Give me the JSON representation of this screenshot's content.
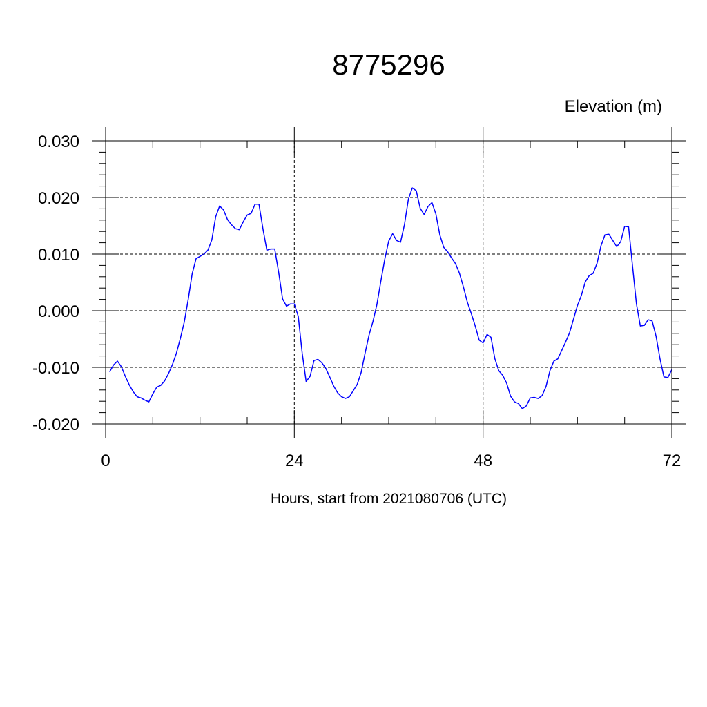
{
  "chart_data": {
    "type": "line",
    "title": "8775296",
    "ylabel": "Elevation (m)",
    "xlabel": "Hours, start from 2021080706 (UTC)",
    "xlim": [
      0,
      72
    ],
    "ylim": [
      -0.02,
      0.03
    ],
    "x_ticks": [
      0,
      24,
      48,
      72
    ],
    "x_tick_labels": [
      "0",
      "24",
      "48",
      "72"
    ],
    "y_ticks": [
      -0.02,
      -0.01,
      0.0,
      0.01,
      0.02,
      0.03
    ],
    "y_tick_labels": [
      "-0.020",
      "-0.010",
      "0.000",
      "0.010",
      "0.020",
      "0.030"
    ],
    "grid": true,
    "series": [
      {
        "name": "",
        "color": "#0000ff",
        "x": [
          0.5,
          1.0,
          1.5,
          2.0,
          2.5,
          3.0,
          3.5,
          4.0,
          4.5,
          5.0,
          5.5,
          6.0,
          6.5,
          7.0,
          7.5,
          8.0,
          8.5,
          9.0,
          9.5,
          10.0,
          10.5,
          11.0,
          11.5,
          12.0,
          12.5,
          13.0,
          13.5,
          14.0,
          14.5,
          15.0,
          15.5,
          16.0,
          16.5,
          17.0,
          17.5,
          18.0,
          18.5,
          19.0,
          19.5,
          20.0,
          20.5,
          21.0,
          21.5,
          22.0,
          22.5,
          23.0,
          23.5,
          24.0,
          24.5,
          25.0,
          25.5,
          26.0,
          26.5,
          27.0,
          27.5,
          28.0,
          28.5,
          29.0,
          29.5,
          30.0,
          30.5,
          31.0,
          31.5,
          32.0,
          32.5,
          33.0,
          33.5,
          34.0,
          34.5,
          35.0,
          35.5,
          36.0,
          36.5,
          37.0,
          37.5,
          38.0,
          38.5,
          39.0,
          39.5,
          40.0,
          40.5,
          41.0,
          41.5,
          42.0,
          42.5,
          43.0,
          43.5,
          44.0,
          44.5,
          45.0,
          45.5,
          46.0,
          46.5,
          47.0,
          47.5,
          48.0,
          48.5,
          49.0,
          49.5,
          50.0,
          50.5,
          51.0,
          51.5,
          52.0,
          52.5,
          53.0,
          53.5,
          54.0,
          54.5,
          55.0,
          55.5,
          56.0,
          56.5,
          57.0,
          57.5,
          58.0,
          58.5,
          59.0,
          59.5,
          60.0,
          60.5,
          61.0,
          61.5,
          62.0,
          62.5,
          63.0,
          63.5,
          64.0,
          64.5,
          65.0,
          65.5,
          66.0,
          66.5,
          67.0,
          67.5,
          68.0,
          68.5,
          69.0,
          69.5,
          70.0,
          70.5,
          71.0,
          71.5,
          72.0
        ],
        "y": [
          -0.0108,
          -0.0096,
          -0.0089,
          -0.0099,
          -0.0116,
          -0.0131,
          -0.0143,
          -0.0152,
          -0.0154,
          -0.0158,
          -0.0161,
          -0.0147,
          -0.0135,
          -0.0132,
          -0.0124,
          -0.0111,
          -0.0095,
          -0.0075,
          -0.0049,
          -0.002,
          0.002,
          0.0065,
          0.0092,
          0.0096,
          0.01,
          0.0107,
          0.0125,
          0.0166,
          0.0185,
          0.0178,
          0.0161,
          0.0152,
          0.0145,
          0.0143,
          0.0157,
          0.0169,
          0.0172,
          0.0188,
          0.0188,
          0.0145,
          0.0107,
          0.0109,
          0.0109,
          0.0068,
          0.0021,
          0.0008,
          0.0012,
          0.0012,
          -0.001,
          -0.0075,
          -0.0125,
          -0.0116,
          -0.0088,
          -0.0086,
          -0.0092,
          -0.0102,
          -0.0117,
          -0.0133,
          -0.0145,
          -0.0152,
          -0.0155,
          -0.0152,
          -0.0141,
          -0.013,
          -0.0109,
          -0.0075,
          -0.0043,
          -0.0019,
          0.0011,
          0.0052,
          0.0091,
          0.0123,
          0.0136,
          0.0124,
          0.0121,
          0.0152,
          0.0197,
          0.0217,
          0.0212,
          0.0181,
          0.017,
          0.0184,
          0.0191,
          0.0171,
          0.0134,
          0.0112,
          0.0104,
          0.0093,
          0.0083,
          0.0066,
          0.0042,
          0.0015,
          -0.0005,
          -0.0027,
          -0.0052,
          -0.0057,
          -0.0042,
          -0.0047,
          -0.0085,
          -0.0106,
          -0.0114,
          -0.0128,
          -0.0151,
          -0.0161,
          -0.0164,
          -0.0173,
          -0.0168,
          -0.0154,
          -0.0153,
          -0.0155,
          -0.015,
          -0.0134,
          -0.0106,
          -0.0089,
          -0.0085,
          -0.007,
          -0.0055,
          -0.0039,
          -0.0015,
          0.0009,
          0.0027,
          0.0051,
          0.0062,
          0.0066,
          0.0084,
          0.0115,
          0.0134,
          0.0135,
          0.0124,
          0.0113,
          0.0122,
          0.0149,
          0.0148,
          0.0079,
          0.0012,
          -0.0027,
          -0.0026,
          -0.0016,
          -0.0018,
          -0.0045,
          -0.0085,
          -0.0117,
          -0.0118,
          -0.0104
        ]
      }
    ]
  }
}
